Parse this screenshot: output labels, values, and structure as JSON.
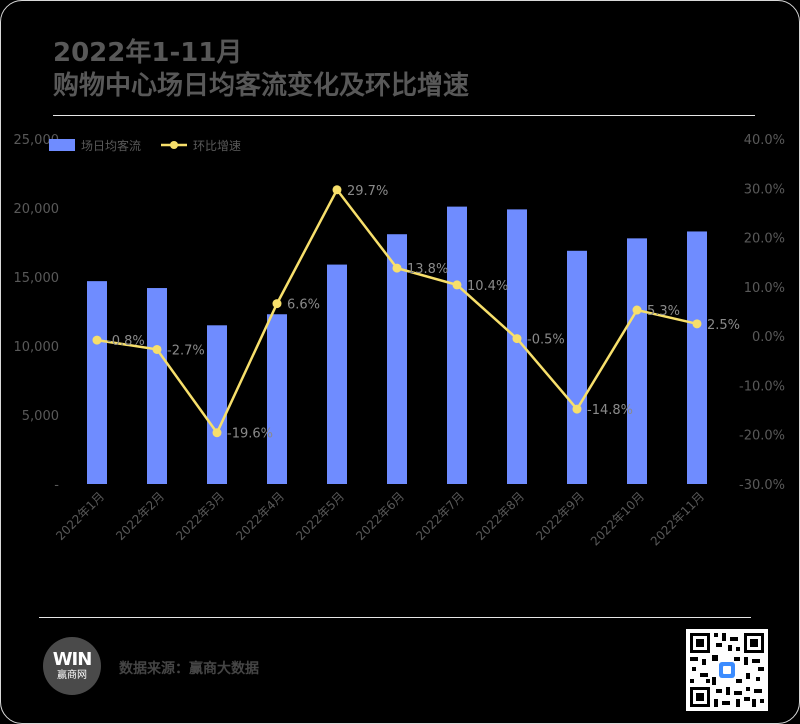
{
  "title_line1": "2022年1-11月",
  "title_line2": "购物中心场日均客流变化及环比增速",
  "source_text": "数据来源：赢商大数据",
  "logo": {
    "mark": "WIN",
    "text": "赢商网"
  },
  "colors": {
    "bar": "#6f8cff",
    "line": "#f7df6b",
    "axis_text": "#595959",
    "label_text": "#8a8a8a"
  },
  "chart_data": {
    "type": "bar",
    "categories": [
      "2022年1月",
      "2022年2月",
      "2022年3月",
      "2022年4月",
      "2022年5月",
      "2022年6月",
      "2022年7月",
      "2022年8月",
      "2022年9月",
      "2022年10月",
      "2022年11月"
    ],
    "series": [
      {
        "name": "场日均客流",
        "type": "bar",
        "axis": "left",
        "values": [
          14700,
          14200,
          11500,
          12300,
          15900,
          18100,
          20100,
          19900,
          16900,
          17800,
          18300
        ]
      },
      {
        "name": "环比增速",
        "type": "line",
        "axis": "right",
        "values": [
          -0.8,
          -2.7,
          -19.6,
          6.6,
          29.7,
          13.8,
          10.4,
          -0.5,
          -14.8,
          5.3,
          2.5
        ],
        "labels": [
          "-0.8%",
          "-2.7%",
          "-19.6%",
          "6.6%",
          "29.7%",
          "13.8%",
          "10.4%",
          "-0.5%",
          "-14.8%",
          "5.3%",
          "2.5%"
        ]
      }
    ],
    "y_left": {
      "ylim": [
        0,
        25000
      ],
      "ticks": [
        "-",
        "5,000",
        "10,000",
        "15,000",
        "20,000",
        "25,000"
      ]
    },
    "y_right": {
      "ylim": [
        -30,
        40
      ],
      "ticks": [
        "-30.0%",
        "-20.0%",
        "-10.0%",
        "0.0%",
        "10.0%",
        "20.0%",
        "30.0%",
        "40.0%"
      ]
    },
    "legend_position": "top-left",
    "grid": false
  }
}
